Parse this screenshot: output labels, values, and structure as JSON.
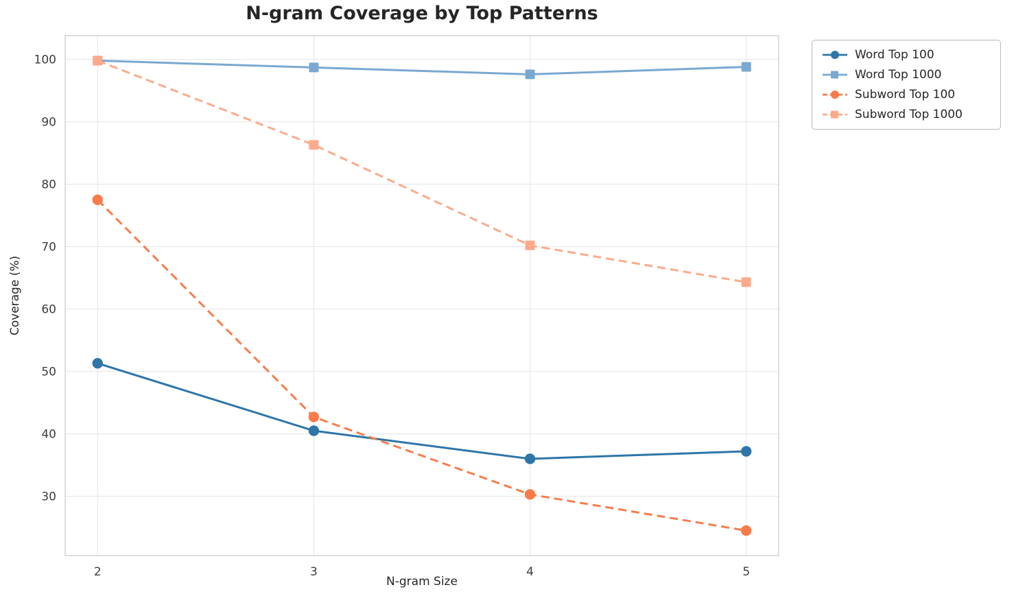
{
  "chart_data": {
    "type": "line",
    "title": "N-gram Coverage by Top Patterns",
    "xlabel": "N-gram Size",
    "ylabel": "Coverage (%)",
    "x": [
      2,
      3,
      4,
      5
    ],
    "x_ticks": [
      "2",
      "3",
      "4",
      "5"
    ],
    "y_ticks": [
      30,
      40,
      50,
      60,
      70,
      80,
      90,
      100
    ],
    "xlim": [
      1.85,
      5.15
    ],
    "ylim": [
      20.5,
      103.8
    ],
    "grid": true,
    "legend_position": "outside-top-right",
    "series": [
      {
        "name": "Word Top 100",
        "color": "#2e75a8",
        "marker": "circle",
        "line_style": "solid",
        "values": [
          51.3,
          40.5,
          36.0,
          37.2
        ]
      },
      {
        "name": "Word Top 1000",
        "color": "#7aa8d1",
        "marker": "square",
        "line_style": "solid",
        "values": [
          99.8,
          98.7,
          97.6,
          98.8
        ]
      },
      {
        "name": "Subword Top 100",
        "color": "#f87c4a",
        "marker": "circle",
        "line_style": "dashed",
        "values": [
          77.5,
          42.7,
          30.3,
          24.5
        ]
      },
      {
        "name": "Subword Top 1000",
        "color": "#fbab8c",
        "marker": "square",
        "line_style": "dashed",
        "values": [
          99.8,
          86.3,
          70.2,
          64.3
        ]
      }
    ]
  }
}
